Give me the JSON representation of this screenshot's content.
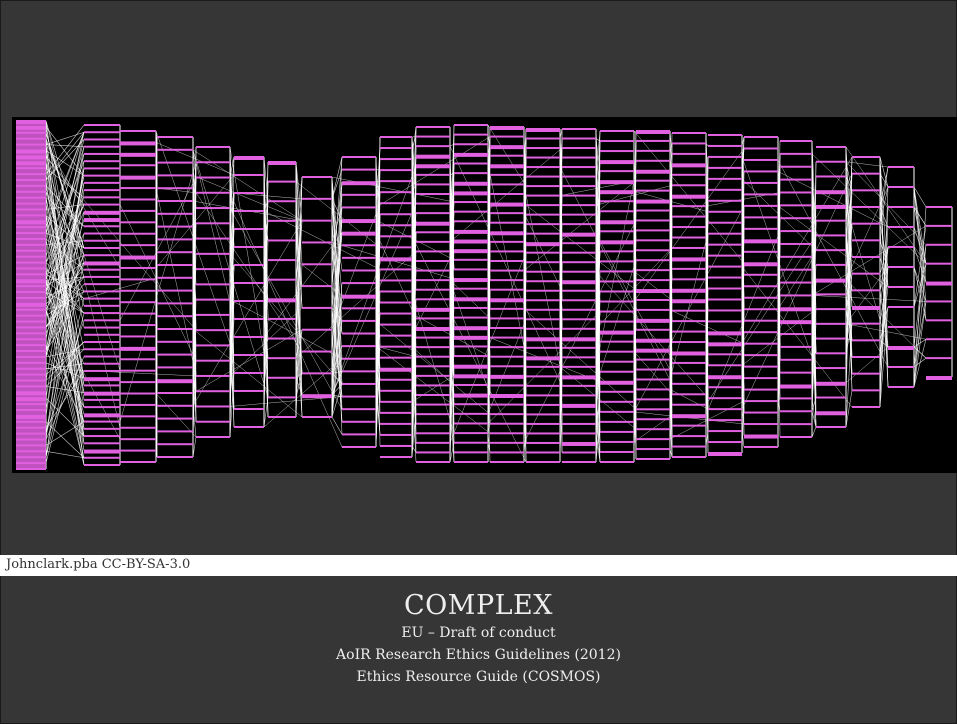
{
  "image": {
    "subject": "network-graph",
    "colors": {
      "background": "#000000",
      "nodes": "#e060e0",
      "edges": "#ffffff"
    }
  },
  "credit": "Johnclark.pba  CC-BY-SA-3.0",
  "title": "COMPLEX",
  "lines": [
    "EU – Draft of conduct",
    "AoIR  Research Ethics Guidelines (2012)",
    "Ethics Resource Guide (COSMOS)"
  ],
  "colors": {
    "slide_background": "#363636",
    "text": "#eeeeee",
    "credit_bar": "#ffffff"
  }
}
